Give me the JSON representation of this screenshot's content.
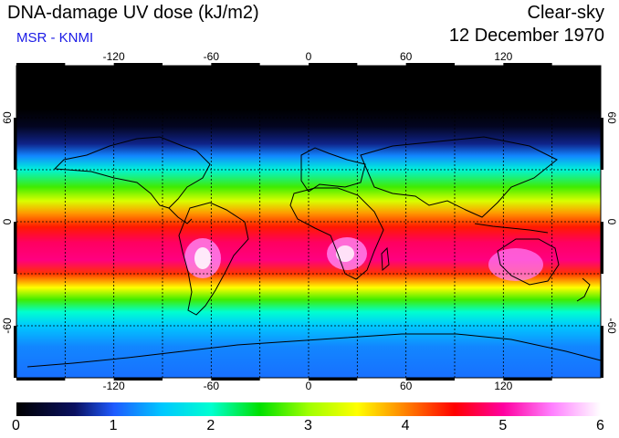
{
  "header": {
    "title": "DNA-damage UV dose (kJ/m2)",
    "subtitle": "MSR - KNMI",
    "condition": "Clear-sky",
    "date": "12 December 1970"
  },
  "map": {
    "lon_ticks": [
      "-120",
      "-60",
      "0",
      "60",
      "120"
    ],
    "lon_values": [
      -120,
      -60,
      0,
      60,
      120
    ],
    "lat_ticks": [
      "60",
      "0",
      "-60"
    ],
    "lat_values": [
      60,
      0,
      -60
    ],
    "lon_range": [
      -180,
      180
    ],
    "lat_range": [
      -90,
      90
    ],
    "grid": "dashed every 30 degrees"
  },
  "colorbar": {
    "labels": [
      "0",
      "1",
      "2",
      "3",
      "4",
      "5",
      "6"
    ],
    "min": 0,
    "max": 6,
    "stops": [
      {
        "value": 0,
        "color": "#000000"
      },
      {
        "value": 0.6,
        "color": "#0a1060"
      },
      {
        "value": 1.0,
        "color": "#1e5aff"
      },
      {
        "value": 1.5,
        "color": "#00c8ff"
      },
      {
        "value": 2.0,
        "color": "#00ffd0"
      },
      {
        "value": 2.5,
        "color": "#00e000"
      },
      {
        "value": 3.0,
        "color": "#a0ff00"
      },
      {
        "value": 3.5,
        "color": "#ffff00"
      },
      {
        "value": 4.0,
        "color": "#ff8000"
      },
      {
        "value": 4.5,
        "color": "#ff0000"
      },
      {
        "value": 5.0,
        "color": "#ff00a0"
      },
      {
        "value": 5.5,
        "color": "#ff80ff"
      },
      {
        "value": 6.0,
        "color": "#ffffff"
      }
    ]
  },
  "band_profile": [
    {
      "lat": 90,
      "value": 0.0
    },
    {
      "lat": 65,
      "value": 0.0
    },
    {
      "lat": 55,
      "value": 0.2
    },
    {
      "lat": 45,
      "value": 0.7
    },
    {
      "lat": 38,
      "value": 1.2
    },
    {
      "lat": 30,
      "value": 1.9
    },
    {
      "lat": 20,
      "value": 2.7
    },
    {
      "lat": 12,
      "value": 3.3
    },
    {
      "lat": 5,
      "value": 3.9
    },
    {
      "lat": -3,
      "value": 4.4
    },
    {
      "lat": -12,
      "value": 4.8
    },
    {
      "lat": -22,
      "value": 4.9
    },
    {
      "lat": -30,
      "value": 4.3
    },
    {
      "lat": -38,
      "value": 3.5
    },
    {
      "lat": -45,
      "value": 2.7
    },
    {
      "lat": -52,
      "value": 2.0
    },
    {
      "lat": -60,
      "value": 1.5
    },
    {
      "lat": -72,
      "value": 1.2
    },
    {
      "lat": -90,
      "value": 1.1
    }
  ]
}
